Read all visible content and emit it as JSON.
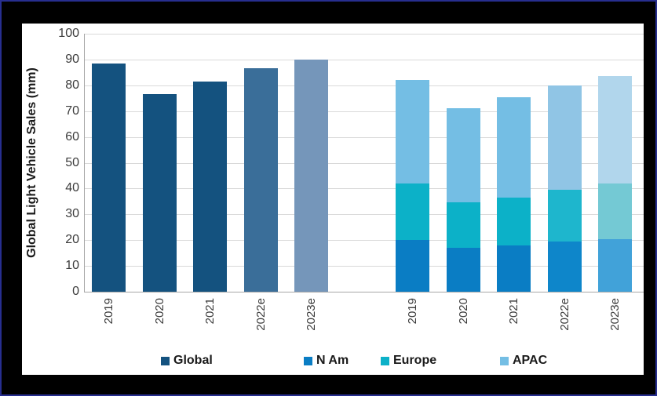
{
  "chart_data": {
    "type": "bar",
    "title": "",
    "ylabel": "Global Light Vehicle Sales (mm)",
    "xlabel": "",
    "ylim": [
      0,
      100
    ],
    "yticks": [
      0,
      10,
      20,
      30,
      40,
      50,
      60,
      70,
      80,
      90,
      100
    ],
    "grid": true,
    "legend_position": "bottom",
    "categories": [
      "2019",
      "2020",
      "2021",
      "2022e",
      "2023e"
    ],
    "groups": [
      {
        "name": "global-totals",
        "stacked": false,
        "series": [
          {
            "name": "Global",
            "values": [
              88.5,
              76.5,
              81.5,
              86.5,
              90
            ],
            "colors_by_year": [
              "#14527F",
              "#14527F",
              "#14527F",
              "#3A6E99",
              "#7596BA"
            ]
          }
        ]
      },
      {
        "name": "regional-stacked",
        "stacked": true,
        "series": [
          {
            "name": "N Am",
            "values": [
              20,
              17,
              18,
              19.5,
              20.5
            ],
            "colors_by_year": [
              "#0A7DC4",
              "#0A7DC4",
              "#0A7DC4",
              "#0E86CA",
              "#41A2D9"
            ]
          },
          {
            "name": "Europe",
            "values": [
              22,
              17.5,
              18.5,
              20,
              21.5
            ],
            "colors_by_year": [
              "#0CB1C8",
              "#0CB1C8",
              "#0CB1C8",
              "#1EB6CD",
              "#74C9D4"
            ]
          },
          {
            "name": "APAC",
            "values": [
              40,
              36.5,
              39,
              40.5,
              41.5
            ],
            "colors_by_year": [
              "#74BEE4",
              "#74BEE4",
              "#74BEE4",
              "#90C5E5",
              "#B1D6EC"
            ]
          }
        ]
      }
    ],
    "legend": [
      {
        "label": "Global",
        "color": "#14527F"
      },
      {
        "label": "N Am",
        "color": "#0A7DC4"
      },
      {
        "label": "Europe",
        "color": "#0CB1C8"
      },
      {
        "label": "APAC",
        "color": "#74BEE4"
      }
    ],
    "colors": {
      "frame_border": "#272E8F",
      "frame_background": "#000000",
      "panel_background": "#FFFFFF",
      "gridline": "#D9D9D9",
      "axis_line": "#A6A6A6",
      "tick_text": "#3B3B3B"
    }
  }
}
